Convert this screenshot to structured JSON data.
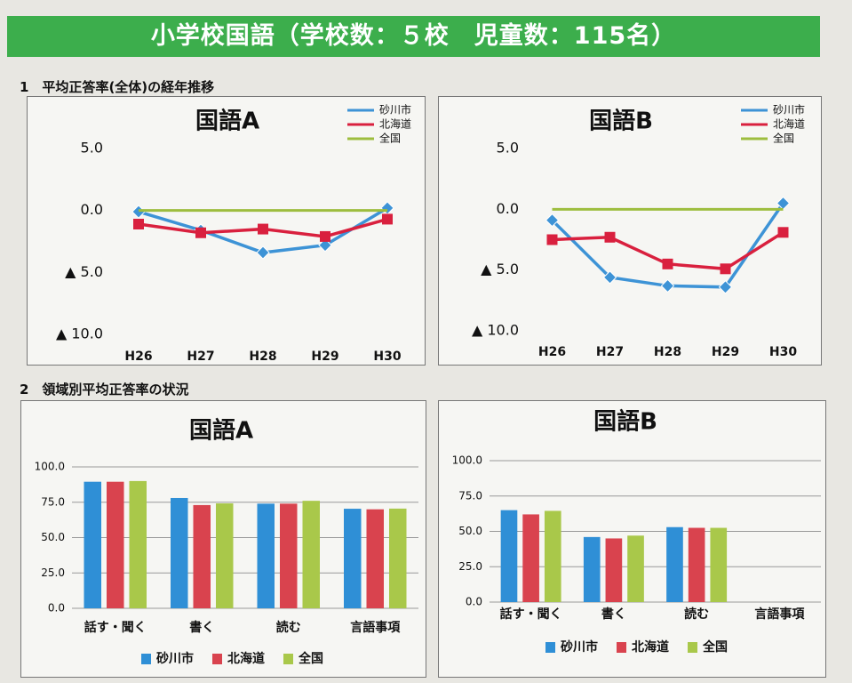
{
  "title": "小学校国語（学校数：５校　児童数：115名）",
  "section_headings": [
    "1　平均正答率(全体)の経年推移",
    "2　領域別平均正答率の状況"
  ],
  "chart_data": [
    {
      "type": "line",
      "title": "国語A",
      "categories": [
        "H26",
        "H27",
        "H28",
        "H29",
        "H30"
      ],
      "ylim": [
        -10,
        5
      ],
      "yticks": [
        {
          "value": 5,
          "label": "5.0"
        },
        {
          "value": 0,
          "label": "0.0"
        },
        {
          "value": -5,
          "label": "▲ 5.0"
        },
        {
          "value": -10,
          "label": "▲ 10.0"
        }
      ],
      "grid": false,
      "legend": "top-right",
      "series": [
        {
          "name": "砂川市",
          "color": "#3d93d6",
          "values": [
            -0.1,
            -1.6,
            -3.4,
            -2.8,
            0.2
          ]
        },
        {
          "name": "北海道",
          "color": "#d9203e",
          "values": [
            -1.1,
            -1.8,
            -1.5,
            -2.1,
            -0.7
          ]
        },
        {
          "name": "全国",
          "color": "#9dbd3e",
          "values": [
            0,
            0,
            0,
            0,
            0
          ]
        }
      ]
    },
    {
      "type": "line",
      "title": "国語B",
      "categories": [
        "H26",
        "H27",
        "H28",
        "H29",
        "H30"
      ],
      "ylim": [
        -10,
        5
      ],
      "yticks": [
        {
          "value": 5,
          "label": "5.0"
        },
        {
          "value": 0,
          "label": "0.0"
        },
        {
          "value": -5,
          "label": "▲ 5.0"
        },
        {
          "value": -10,
          "label": "▲ 10.0"
        }
      ],
      "grid": false,
      "legend": "top-right",
      "series": [
        {
          "name": "砂川市",
          "color": "#3d93d6",
          "values": [
            -0.9,
            -5.6,
            -6.3,
            -6.4,
            0.5
          ]
        },
        {
          "name": "北海道",
          "color": "#d9203e",
          "values": [
            -2.5,
            -2.3,
            -4.5,
            -4.9,
            -1.9
          ]
        },
        {
          "name": "全国",
          "color": "#9dbd3e",
          "values": [
            0,
            0,
            0,
            0,
            0
          ]
        }
      ]
    },
    {
      "type": "bar",
      "title": "国語A",
      "categories": [
        "話す・聞く",
        "書く",
        "読む",
        "言語事項"
      ],
      "ylim": [
        0,
        100
      ],
      "yticks": [
        {
          "value": 0,
          "label": "0.0"
        },
        {
          "value": 25,
          "label": "25.0"
        },
        {
          "value": 50,
          "label": "50.0"
        },
        {
          "value": 75,
          "label": "75.0"
        },
        {
          "value": 100,
          "label": "100.0"
        }
      ],
      "grid": true,
      "legend": "bottom",
      "series": [
        {
          "name": "砂川市",
          "color": "#2f8fd6",
          "values": [
            89.5,
            78,
            74,
            70.4
          ]
        },
        {
          "name": "北海道",
          "color": "#d9434e",
          "values": [
            89.5,
            73,
            74,
            70
          ]
        },
        {
          "name": "全国",
          "color": "#a9c84a",
          "values": [
            90,
            74.2,
            76,
            70.5
          ]
        }
      ]
    },
    {
      "type": "bar",
      "title": "国語B",
      "categories": [
        "話す・聞く",
        "書く",
        "読む",
        "言語事項"
      ],
      "ylim": [
        0,
        100
      ],
      "yticks": [
        {
          "value": 0,
          "label": "0.0"
        },
        {
          "value": 25,
          "label": "25.0"
        },
        {
          "value": 50,
          "label": "50.0"
        },
        {
          "value": 75,
          "label": "75.0"
        },
        {
          "value": 100,
          "label": "100.0"
        }
      ],
      "grid": true,
      "legend": "bottom",
      "series": [
        {
          "name": "砂川市",
          "color": "#2f8fd6",
          "values": [
            65,
            46,
            53,
            null
          ]
        },
        {
          "name": "北海道",
          "color": "#d9434e",
          "values": [
            62,
            45,
            52.5,
            null
          ]
        },
        {
          "name": "全国",
          "color": "#a9c84a",
          "values": [
            64.5,
            47,
            52.5,
            null
          ]
        }
      ]
    }
  ]
}
